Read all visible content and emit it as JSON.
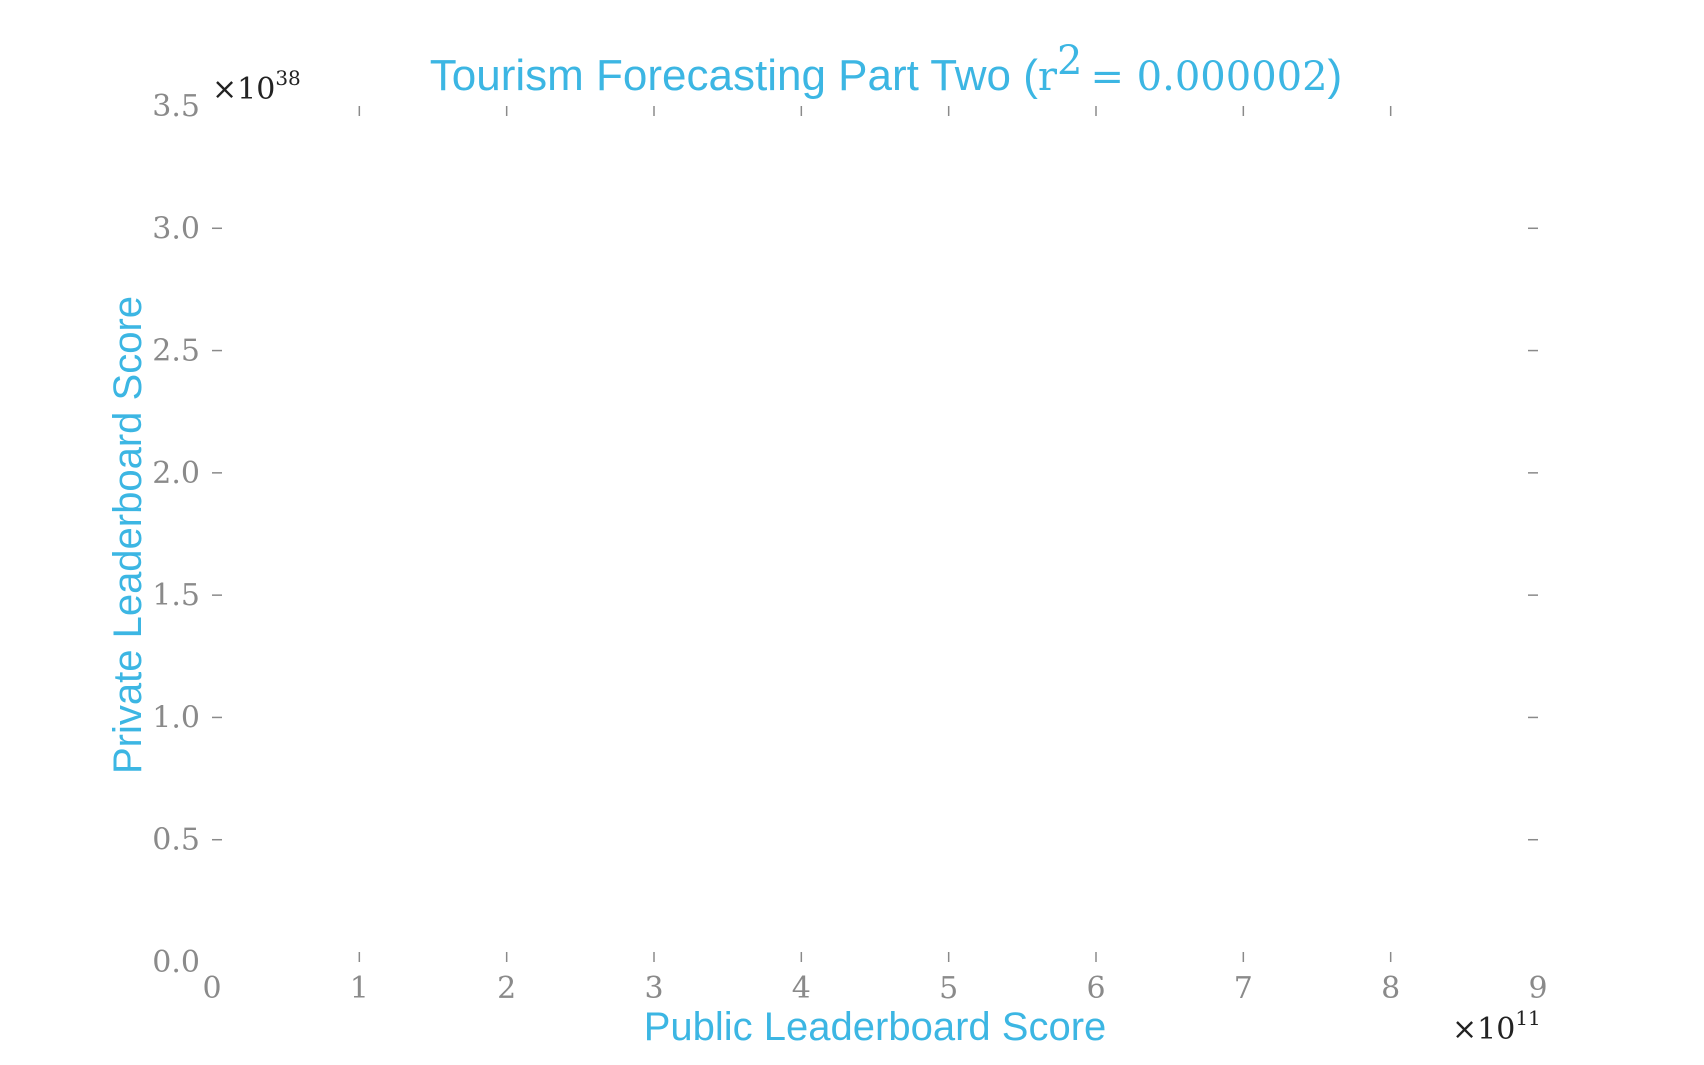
{
  "chart_data": {
    "type": "scatter",
    "title": "Tourism Forecasting Part Two",
    "title_stat_symbol": "r",
    "title_stat_power": "2",
    "title_stat_value": "= 0.000002",
    "title_color": "#3cb6e3",
    "xlabel": "Public Leaderboard Score",
    "ylabel": "Private Leaderboard Score",
    "xlim": [
      0,
      9
    ],
    "ylim": [
      0,
      3.5
    ],
    "x_ticks": [
      "0",
      "1",
      "2",
      "3",
      "4",
      "5",
      "6",
      "7",
      "8",
      "9"
    ],
    "y_ticks": [
      "0.0",
      "0.5",
      "1.0",
      "1.5",
      "2.0",
      "2.5",
      "3.0",
      "3.5"
    ],
    "x_multiplier_base": "×10",
    "x_multiplier_exp": "11",
    "y_multiplier_base": "×10",
    "y_multiplier_exp": "38",
    "grid": false,
    "points": [],
    "tick_color": "#8a8a8a"
  }
}
